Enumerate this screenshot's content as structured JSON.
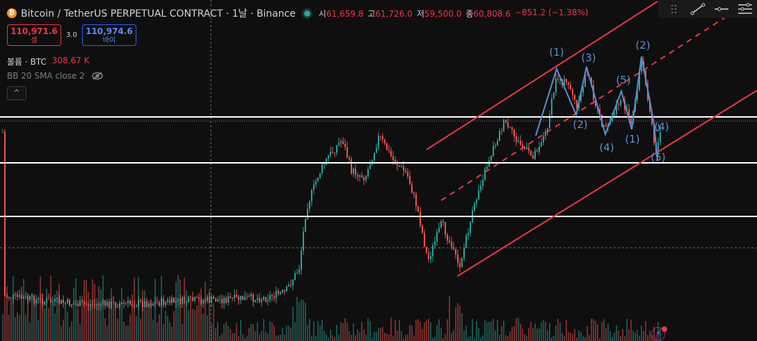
{
  "header": {
    "coin_icon": "bitcoin-icon",
    "coin_glyph": "₿",
    "symbol": "Bitcoin / TetherUS PERPETUAL CONTRACT · 1날 · Binance",
    "ohlc": {
      "open_label": "시",
      "open": "61,659.8",
      "high_label": "고",
      "high": "61,726.0",
      "low_label": "저",
      "low": "59,500.0",
      "close_label": "종",
      "close": "60,808.6",
      "change": "−851.2 (−1.38%)"
    }
  },
  "trade": {
    "sell_price": "110,971.6",
    "sell_label": "셀",
    "spread": "3.0",
    "buy_price": "110,974.6",
    "buy_label": "바이"
  },
  "indicators": {
    "volume_label": "볼륨 · BTC",
    "volume_value": "308.67 K",
    "bb_label": "BB 20 SMA close 2",
    "collapse_glyph": "^"
  },
  "colors": {
    "up": "#26a69a",
    "down": "#ef5350",
    "channel": "#f23645",
    "wave": "#5b8fd6",
    "level": "#ffffff",
    "background": "#0f0f0f"
  },
  "toolbar_icons": [
    "drag-handle-icon",
    "trendline-icon",
    "horizontal-ray-icon",
    "menu-lines-icon"
  ],
  "wave_labels": [
    {
      "text": "(1)",
      "x": 176,
      "price": 104000
    },
    {
      "text": "(2)",
      "x": 188,
      "price": 76000
    },
    {
      "text": "(3)",
      "x": 194,
      "price": 101000
    },
    {
      "text": "(4)",
      "x": 202,
      "price": 61000
    },
    {
      "text": "(5)",
      "x": 208,
      "price": 89000
    },
    {
      "text": "(1)",
      "x": 212,
      "price": 65000
    },
    {
      "text": "(2)",
      "x": 215,
      "price": 110000
    },
    {
      "text": "(4)",
      "x": 222,
      "price": 73000
    },
    {
      "text": "(5)",
      "x": 220,
      "price": 48000
    }
  ],
  "bolt_glyph": "⚡"
}
